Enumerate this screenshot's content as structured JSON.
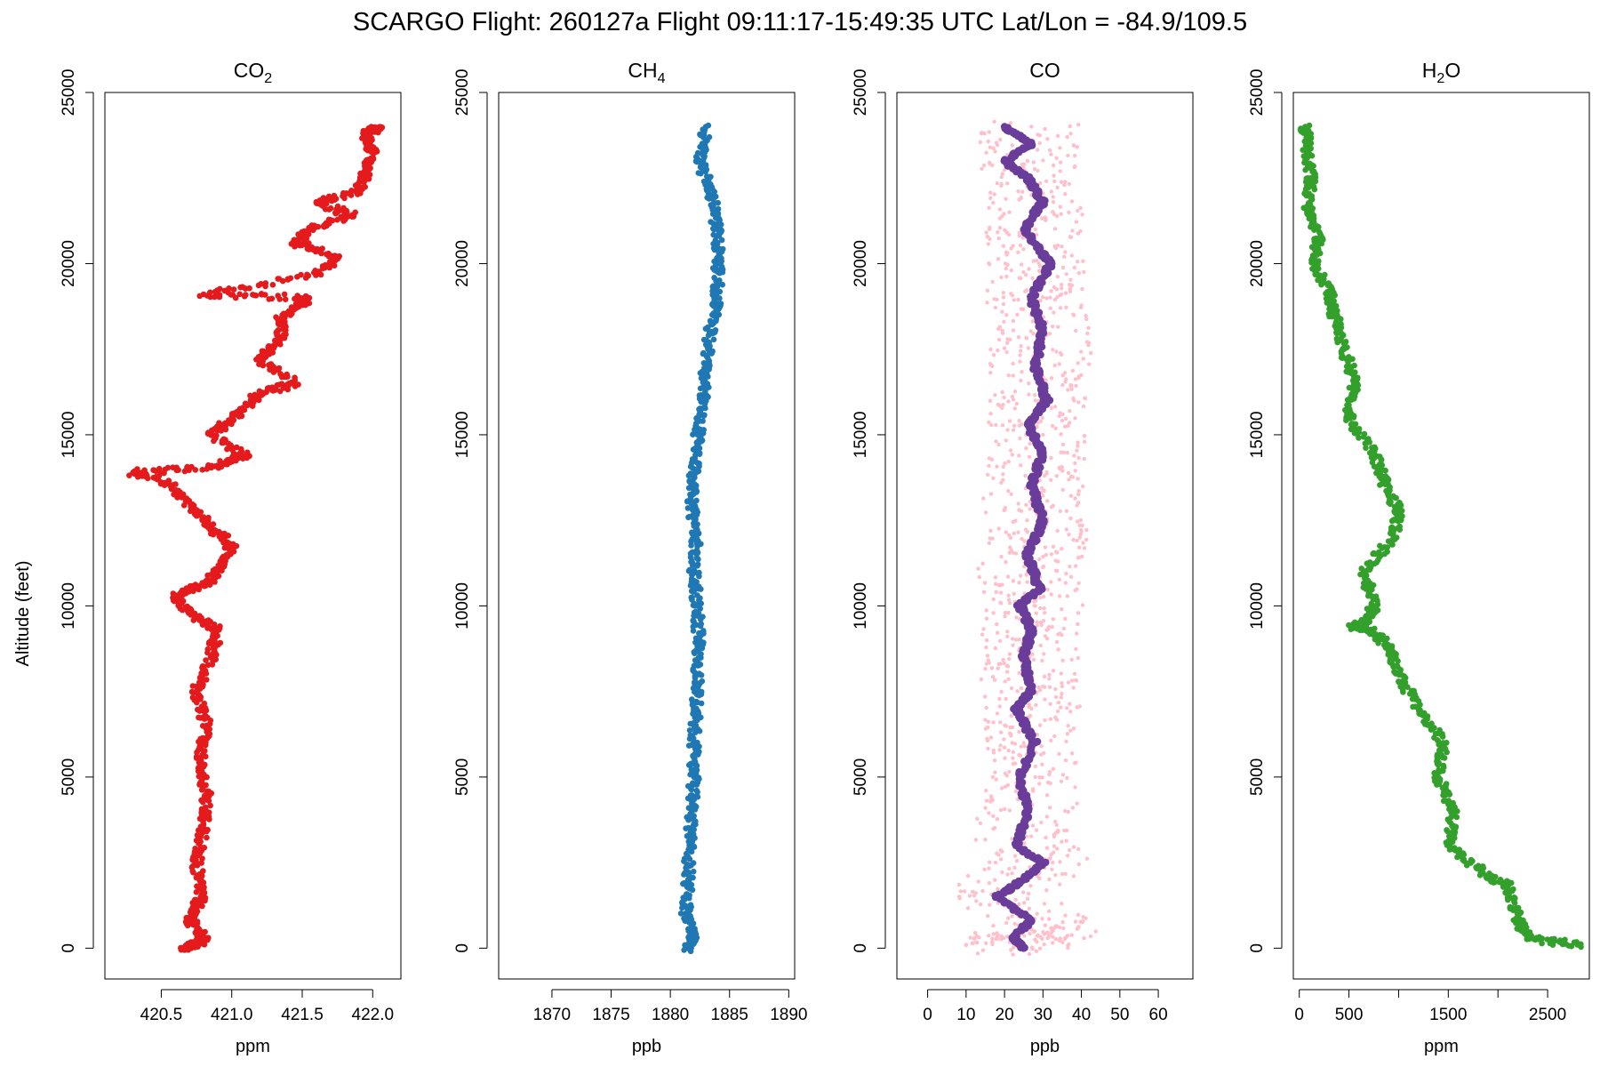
{
  "figure": {
    "title": "SCARGO Flight: 260127a  Flight  09:11:17-15:49:35 UTC  Lat/Lon = -84.9/109.5",
    "shared_ylabel": "Altitude (feet)"
  },
  "chart_data": [
    {
      "type": "scatter",
      "title": "CO2",
      "title_main": "CO",
      "title_sub": "2",
      "xlabel": "ppm",
      "ylabel": "Altitude (feet)",
      "xlim": [
        420.1,
        422.2
      ],
      "ylim": [
        -900,
        25000
      ],
      "xticks": [
        420.5,
        421.0,
        421.5,
        422.0
      ],
      "xtick_labels": [
        "420.5",
        "421.0",
        "421.5",
        "422.0"
      ],
      "yticks": [
        0,
        5000,
        10000,
        15000,
        20000,
        25000
      ],
      "ytick_labels": [
        "0",
        "5000",
        "10000",
        "15000",
        "20000",
        "25000"
      ],
      "series": [
        {
          "name": "CO2",
          "color": "#E41A1C",
          "points": [
            [
              420.65,
              0
            ],
            [
              420.75,
              100
            ],
            [
              420.8,
              300
            ],
            [
              420.7,
              800
            ],
            [
              420.78,
              1500
            ],
            [
              420.75,
              2500
            ],
            [
              420.8,
              3500
            ],
            [
              420.82,
              4500
            ],
            [
              420.78,
              5500
            ],
            [
              420.82,
              6500
            ],
            [
              420.75,
              7500
            ],
            [
              420.85,
              8500
            ],
            [
              420.9,
              9300
            ],
            [
              420.7,
              9800
            ],
            [
              420.6,
              10300
            ],
            [
              420.8,
              10600
            ],
            [
              420.9,
              11000
            ],
            [
              421.0,
              11800
            ],
            [
              420.85,
              12300
            ],
            [
              420.75,
              12800
            ],
            [
              420.55,
              13600
            ],
            [
              420.3,
              13900
            ],
            [
              420.9,
              14100
            ],
            [
              421.1,
              14400
            ],
            [
              420.85,
              15000
            ],
            [
              421.05,
              15600
            ],
            [
              421.2,
              16200
            ],
            [
              421.45,
              16500
            ],
            [
              421.2,
              17200
            ],
            [
              421.35,
              17800
            ],
            [
              421.35,
              18400
            ],
            [
              421.55,
              19000
            ],
            [
              420.8,
              19100
            ],
            [
              421.6,
              19700
            ],
            [
              421.75,
              20200
            ],
            [
              421.45,
              20600
            ],
            [
              421.55,
              21000
            ],
            [
              421.85,
              21400
            ],
            [
              421.6,
              21800
            ],
            [
              421.9,
              22100
            ],
            [
              421.95,
              22700
            ],
            [
              422.0,
              23300
            ],
            [
              421.95,
              23800
            ],
            [
              422.05,
              24000
            ]
          ]
        }
      ]
    },
    {
      "type": "scatter",
      "title": "CH4",
      "title_main": "CH",
      "title_sub": "4",
      "xlabel": "ppb",
      "ylabel": "",
      "xlim": [
        1865.5,
        1890.5
      ],
      "ylim": [
        -900,
        25000
      ],
      "xticks": [
        1870,
        1875,
        1880,
        1885,
        1890
      ],
      "xtick_labels": [
        "1870",
        "1875",
        "1880",
        "1885",
        "1890"
      ],
      "yticks": [
        0,
        5000,
        10000,
        15000,
        20000,
        25000
      ],
      "ytick_labels": [
        "0",
        "5000",
        "10000",
        "15000",
        "20000",
        "25000"
      ],
      "series": [
        {
          "name": "CH4",
          "color": "#1F78B4",
          "points": [
            [
              1881.5,
              0
            ],
            [
              1882,
              300
            ],
            [
              1881.3,
              1000
            ],
            [
              1881.5,
              2000
            ],
            [
              1881.6,
              3000
            ],
            [
              1881.8,
              4000
            ],
            [
              1882,
              5000
            ],
            [
              1882,
              6000
            ],
            [
              1882.2,
              7000
            ],
            [
              1882.3,
              8000
            ],
            [
              1882.4,
              9000
            ],
            [
              1882.3,
              10000
            ],
            [
              1882,
              11000
            ],
            [
              1882.2,
              12000
            ],
            [
              1881.8,
              13000
            ],
            [
              1882,
              14000
            ],
            [
              1882.3,
              15000
            ],
            [
              1882.8,
              16000
            ],
            [
              1883,
              17000
            ],
            [
              1883.3,
              18000
            ],
            [
              1884,
              19000
            ],
            [
              1884,
              20000
            ],
            [
              1884,
              21000
            ],
            [
              1883.5,
              22000
            ],
            [
              1882.5,
              23000
            ],
            [
              1883,
              24000
            ]
          ]
        }
      ]
    },
    {
      "type": "scatter",
      "title": "CO",
      "title_main": "CO",
      "title_sub": "",
      "xlabel": "ppb",
      "ylabel": "",
      "xlim": [
        -8,
        69
      ],
      "ylim": [
        -900,
        25000
      ],
      "xticks": [
        0,
        10,
        20,
        30,
        40,
        50,
        60
      ],
      "xtick_labels": [
        "0",
        "10",
        "20",
        "30",
        "40",
        "50",
        "60"
      ],
      "yticks": [
        0,
        5000,
        10000,
        15000,
        20000,
        25000
      ],
      "ytick_labels": [
        "0",
        "5000",
        "10000",
        "15000",
        "20000",
        "25000"
      ],
      "series": [
        {
          "name": "CO raw",
          "color": "#FFC0CB",
          "points": [
            [
              25,
              0
            ],
            [
              22,
              300
            ],
            [
              33,
              600
            ],
            [
              18,
              1500
            ],
            [
              30,
              2500
            ],
            [
              24,
              3500
            ],
            [
              28,
              5000
            ],
            [
              25,
              6000
            ],
            [
              27,
              7000
            ],
            [
              26,
              8000
            ],
            [
              27,
              9000
            ],
            [
              28,
              10000
            ],
            [
              26,
              11000
            ],
            [
              29,
              12000
            ],
            [
              27,
              13000
            ],
            [
              28,
              14000
            ],
            [
              30,
              15000
            ],
            [
              28,
              16000
            ],
            [
              29,
              17000
            ],
            [
              30,
              18000
            ],
            [
              28,
              19000
            ],
            [
              29,
              20000
            ],
            [
              28,
              21000
            ],
            [
              27,
              22000
            ],
            [
              26,
              23000
            ],
            [
              27,
              24000
            ]
          ]
        },
        {
          "name": "CO smoothed",
          "color": "#6A3D9A",
          "points": [
            [
              25,
              0
            ],
            [
              22,
              300
            ],
            [
              27,
              800
            ],
            [
              18,
              1500
            ],
            [
              25,
              2000
            ],
            [
              30,
              2500
            ],
            [
              23,
              3000
            ],
            [
              26,
              4000
            ],
            [
              24,
              5000
            ],
            [
              28,
              6000
            ],
            [
              23,
              7000
            ],
            [
              27,
              7500
            ],
            [
              25,
              8500
            ],
            [
              27,
              9300
            ],
            [
              24,
              10000
            ],
            [
              29,
              10500
            ],
            [
              26,
              11500
            ],
            [
              30,
              12500
            ],
            [
              27,
              13500
            ],
            [
              30,
              14500
            ],
            [
              26,
              15300
            ],
            [
              31,
              16000
            ],
            [
              28,
              17000
            ],
            [
              30,
              18000
            ],
            [
              27,
              19000
            ],
            [
              32,
              20000
            ],
            [
              25,
              21000
            ],
            [
              30,
              21800
            ],
            [
              26,
              22500
            ],
            [
              20,
              23000
            ],
            [
              27,
              23500
            ],
            [
              20,
              24000
            ]
          ]
        }
      ]
    },
    {
      "type": "scatter",
      "title": "H2O",
      "title_main": "H",
      "title_sub": "2",
      "title_tail": "O",
      "xlabel": "ppm",
      "ylabel": "",
      "xlim": [
        -60,
        2920
      ],
      "ylim": [
        -900,
        25000
      ],
      "xticks": [
        0,
        500,
        1500,
        2500
      ],
      "xtick_labels": [
        "0",
        "500",
        "1500",
        "2500"
      ],
      "xticks_minor": [
        1000,
        2000
      ],
      "yticks": [
        0,
        5000,
        10000,
        15000,
        20000,
        25000
      ],
      "ytick_labels": [
        "0",
        "5000",
        "10000",
        "15000",
        "20000",
        "25000"
      ],
      "series": [
        {
          "name": "H2O",
          "color": "#33A02C",
          "points": [
            [
              2800,
              100
            ],
            [
              2300,
              300
            ],
            [
              2200,
              800
            ],
            [
              2100,
              1800
            ],
            [
              1850,
              2200
            ],
            [
              1500,
              3000
            ],
            [
              1550,
              4000
            ],
            [
              1400,
              5000
            ],
            [
              1450,
              6000
            ],
            [
              1200,
              7000
            ],
            [
              1000,
              8000
            ],
            [
              900,
              8800
            ],
            [
              700,
              9300
            ],
            [
              550,
              9400
            ],
            [
              700,
              9600
            ],
            [
              750,
              10000
            ],
            [
              650,
              11000
            ],
            [
              950,
              12000
            ],
            [
              1000,
              12800
            ],
            [
              850,
              13600
            ],
            [
              750,
              14500
            ],
            [
              500,
              15500
            ],
            [
              550,
              16500
            ],
            [
              450,
              17500
            ],
            [
              350,
              18500
            ],
            [
              300,
              19200
            ],
            [
              150,
              20000
            ],
            [
              200,
              20700
            ],
            [
              80,
              21500
            ],
            [
              120,
              22500
            ],
            [
              80,
              23500
            ],
            [
              60,
              24000
            ]
          ]
        }
      ]
    }
  ]
}
